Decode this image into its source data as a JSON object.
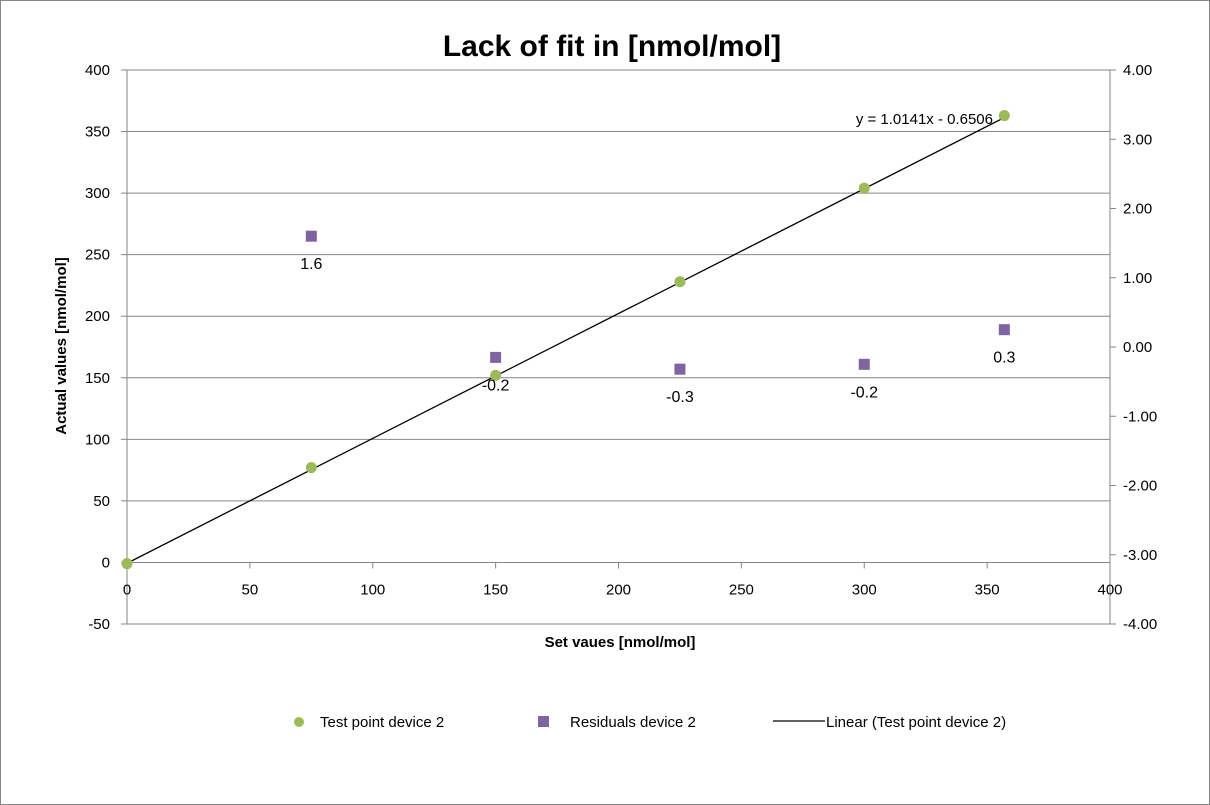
{
  "chart_data": {
    "type": "scatter",
    "title": "Lack of fit in [nmol/mol]",
    "xlabel": "Set vaues [nmol/mol]",
    "ylabel": "Actual values [nmol/mol]",
    "xlim": [
      0,
      400
    ],
    "ylim": [
      -50,
      400
    ],
    "y2lim": [
      -4,
      4
    ],
    "x_ticks": [
      0,
      50,
      100,
      150,
      200,
      250,
      300,
      350,
      400
    ],
    "y_ticks": [
      -50,
      0,
      50,
      100,
      150,
      200,
      250,
      300,
      350,
      400
    ],
    "y2_ticks": [
      "-4.00",
      "-3.00",
      "-2.00",
      "-1.00",
      "0.00",
      "1.00",
      "2.00",
      "3.00",
      "4.00"
    ],
    "grid": true,
    "legend_position": "bottom",
    "series": [
      {
        "name": "Test point device 2",
        "axis": "left",
        "marker": "circle",
        "color": "#9bbb59",
        "points": [
          [
            0,
            -1
          ],
          [
            75,
            77
          ],
          [
            150,
            152
          ],
          [
            225,
            228
          ],
          [
            300,
            304
          ],
          [
            357,
            363
          ]
        ]
      },
      {
        "name": "Residuals device 2",
        "axis": "right",
        "marker": "square",
        "color": "#8064a2",
        "points": [
          [
            75,
            1.6
          ],
          [
            150,
            -0.15
          ],
          [
            225,
            -0.32
          ],
          [
            300,
            -0.25
          ],
          [
            357,
            0.25
          ]
        ],
        "labels": [
          "1.6",
          "-0.2",
          "-0.3",
          "-0.2",
          "0.3"
        ]
      }
    ],
    "trendline": {
      "name": "Linear (Test point device 2)",
      "color": "#000000",
      "slope": 1.0141,
      "intercept": -0.6506,
      "x_range": [
        0,
        357
      ],
      "equation": "y = 1.0141x - 0.6506"
    }
  }
}
